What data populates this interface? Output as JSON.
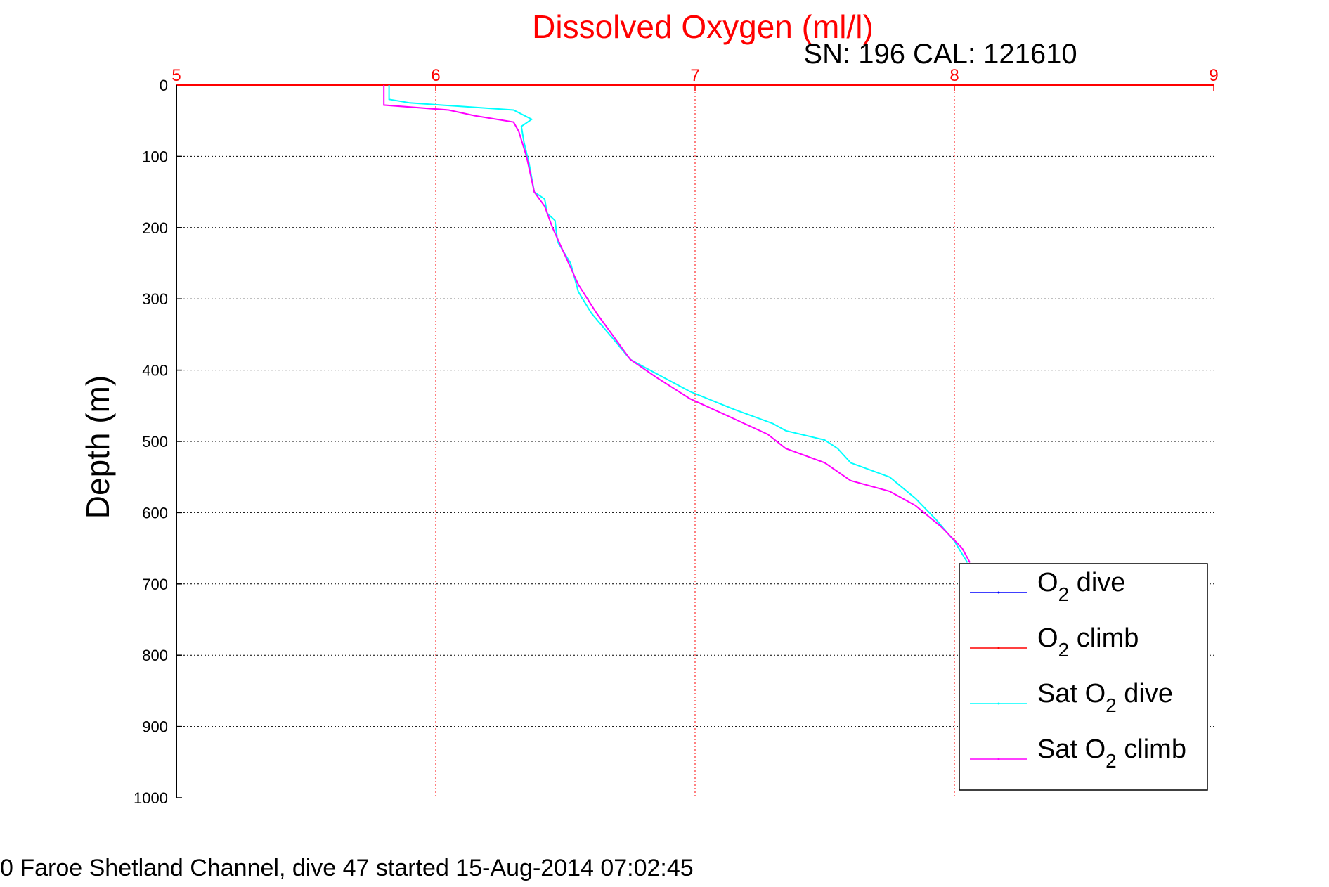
{
  "chart_data": {
    "type": "line",
    "title": "Dissolved Oxygen (ml/l)",
    "subtitle": "SN: 196  CAL: 121610",
    "xlabel": "",
    "ylabel": "Depth (m)",
    "footer": "0 Faroe Shetland Channel, dive 47 started 15-Aug-2014 07:02:45",
    "xlim": [
      5,
      9
    ],
    "ylim": [
      0,
      1000
    ],
    "y_reversed": true,
    "x_axis_position": "top",
    "grid": true,
    "legend_position": "bottom-right",
    "x_ticks": [
      "5",
      "6",
      "7",
      "8",
      "9"
    ],
    "y_ticks": [
      "0",
      "100",
      "200",
      "300",
      "400",
      "500",
      "600",
      "700",
      "800",
      "900",
      "1000"
    ],
    "colors": {
      "axis_x": "#ff0000",
      "grid_x": "#ff0000",
      "grid_y": "#000000"
    },
    "series": [
      {
        "name": "O2 dive",
        "legend_main": "O",
        "legend_sub": "2",
        "legend_rest": " dive",
        "color": "#0000ff",
        "points": []
      },
      {
        "name": "O2 climb",
        "legend_main": "O",
        "legend_sub": "2",
        "legend_rest": " climb",
        "color": "#ff0000",
        "points": []
      },
      {
        "name": "Sat O2 dive",
        "legend_main": "Sat O",
        "legend_sub": "2",
        "legend_rest": " dive",
        "color": "#00ffff",
        "points": [
          [
            5.82,
            0
          ],
          [
            5.82,
            20
          ],
          [
            5.9,
            25
          ],
          [
            6.1,
            30
          ],
          [
            6.3,
            35
          ],
          [
            6.37,
            48
          ],
          [
            6.33,
            58
          ],
          [
            6.34,
            80
          ],
          [
            6.36,
            110
          ],
          [
            6.38,
            150
          ],
          [
            6.42,
            160
          ],
          [
            6.43,
            180
          ],
          [
            6.46,
            190
          ],
          [
            6.47,
            220
          ],
          [
            6.52,
            250
          ],
          [
            6.55,
            290
          ],
          [
            6.6,
            320
          ],
          [
            6.67,
            350
          ],
          [
            6.75,
            385
          ],
          [
            6.8,
            395
          ],
          [
            6.98,
            430
          ],
          [
            7.15,
            455
          ],
          [
            7.3,
            475
          ],
          [
            7.35,
            485
          ],
          [
            7.5,
            498
          ],
          [
            7.55,
            510
          ],
          [
            7.6,
            530
          ],
          [
            7.75,
            550
          ],
          [
            7.85,
            580
          ],
          [
            7.93,
            610
          ],
          [
            8.0,
            640
          ],
          [
            8.05,
            670
          ]
        ]
      },
      {
        "name": "Sat O2 climb",
        "legend_main": "Sat O",
        "legend_sub": "2",
        "legend_rest": " climb",
        "color": "#ff00ff",
        "points": [
          [
            5.8,
            0
          ],
          [
            5.8,
            28
          ],
          [
            6.05,
            35
          ],
          [
            6.15,
            43
          ],
          [
            6.3,
            52
          ],
          [
            6.32,
            65
          ],
          [
            6.35,
            100
          ],
          [
            6.38,
            150
          ],
          [
            6.42,
            170
          ],
          [
            6.45,
            200
          ],
          [
            6.5,
            240
          ],
          [
            6.55,
            280
          ],
          [
            6.62,
            320
          ],
          [
            6.68,
            350
          ],
          [
            6.75,
            385
          ],
          [
            6.85,
            410
          ],
          [
            6.98,
            440
          ],
          [
            7.1,
            460
          ],
          [
            7.28,
            490
          ],
          [
            7.35,
            510
          ],
          [
            7.5,
            530
          ],
          [
            7.6,
            555
          ],
          [
            7.75,
            570
          ],
          [
            7.85,
            590
          ],
          [
            7.95,
            620
          ],
          [
            8.03,
            650
          ],
          [
            8.06,
            670
          ]
        ]
      }
    ]
  }
}
